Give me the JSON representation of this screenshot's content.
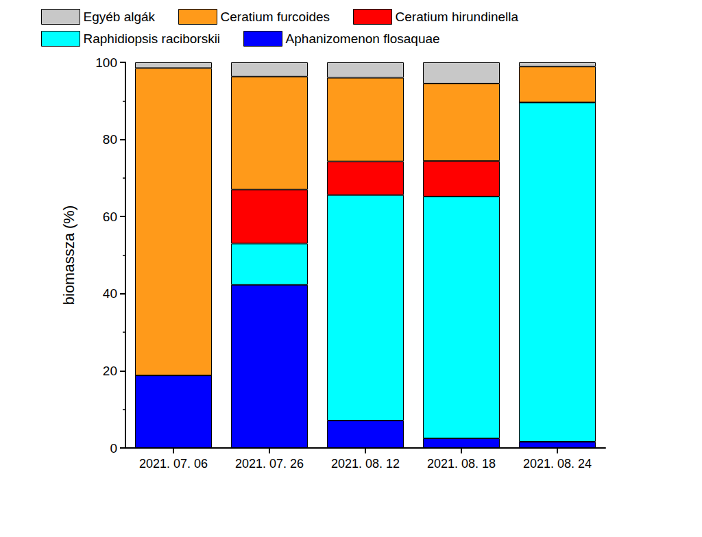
{
  "chart_data": {
    "type": "bar",
    "stacked": true,
    "legend": "top",
    "y_label": "biomassza (%)",
    "categories": [
      "2021. 07. 06",
      "2021. 07. 26",
      "2021. 08. 12",
      "2021. 08. 18",
      "2021. 08. 24"
    ],
    "series": [
      {
        "name": "Egyéb algák",
        "color": "#c8c8c8",
        "values": [
          1.5,
          3.7,
          4.0,
          5.5,
          1.1
        ]
      },
      {
        "name": "Ceratium furcoides",
        "color": "#ff9a1a",
        "values": [
          79.7,
          29.3,
          21.7,
          20.1,
          9.3
        ]
      },
      {
        "name": "Ceratium hirundinella",
        "color": "#ff0000",
        "values": [
          0,
          14.0,
          8.7,
          9.2,
          0
        ]
      },
      {
        "name": "Raphidiopsis raciborskii",
        "color": "#00ffff",
        "values": [
          0,
          10.7,
          58.5,
          62.7,
          88.0
        ]
      },
      {
        "name": "Aphanizomenon flosaquae",
        "color": "#0000ff",
        "values": [
          18.8,
          42.3,
          7.1,
          2.5,
          1.6
        ]
      }
    ],
    "ylim": [
      0,
      100
    ],
    "yticks": [
      0,
      20,
      40,
      60,
      80,
      100
    ]
  }
}
